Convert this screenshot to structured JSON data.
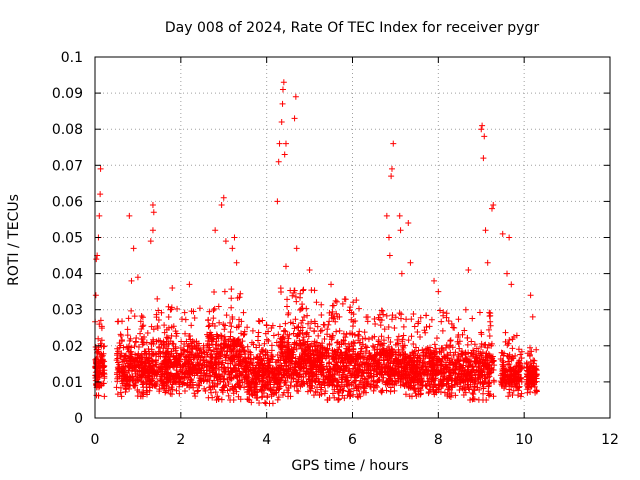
{
  "chart_data": {
    "type": "scatter",
    "title": "Day 008 of 2024, Rate Of TEC Index for receiver pygr",
    "xlabel": "GPS time / hours",
    "ylabel": "ROTI / TECUs",
    "xlim": [
      0,
      12
    ],
    "ylim": [
      0,
      0.1
    ],
    "xticks": [
      "0",
      "2",
      "4",
      "6",
      "8",
      "10",
      "12"
    ],
    "yticks": [
      "0",
      "0.01",
      "0.02",
      "0.03",
      "0.04",
      "0.05",
      "0.06",
      "0.07",
      "0.08",
      "0.09",
      "0.1"
    ],
    "grid": true,
    "marker": "+",
    "color": "#ff0000",
    "series": [
      {
        "name": "ROTI",
        "points": [
          [
            0.02,
            0.034
          ],
          [
            0.03,
            0.044
          ],
          [
            0.05,
            0.045
          ],
          [
            0.08,
            0.05
          ],
          [
            0.1,
            0.056
          ],
          [
            0.12,
            0.062
          ],
          [
            0.13,
            0.069
          ],
          [
            0.1,
            0.026
          ],
          [
            0.08,
            0.019
          ],
          [
            0.05,
            0.013
          ],
          [
            0.12,
            0.009
          ],
          [
            0.15,
            0.02
          ],
          [
            0.8,
            0.056
          ],
          [
            0.85,
            0.038
          ],
          [
            0.9,
            0.047
          ],
          [
            1.0,
            0.039
          ],
          [
            1.35,
            0.059
          ],
          [
            1.37,
            0.057
          ],
          [
            1.3,
            0.049
          ],
          [
            1.35,
            0.052
          ],
          [
            1.45,
            0.033
          ],
          [
            1.8,
            0.036
          ],
          [
            2.2,
            0.037
          ],
          [
            2.8,
            0.052
          ],
          [
            2.95,
            0.059
          ],
          [
            3.0,
            0.061
          ],
          [
            3.05,
            0.049
          ],
          [
            3.2,
            0.047
          ],
          [
            3.25,
            0.05
          ],
          [
            3.3,
            0.043
          ],
          [
            3.9,
            0.027
          ],
          [
            4.25,
            0.06
          ],
          [
            4.28,
            0.071
          ],
          [
            4.3,
            0.076
          ],
          [
            4.35,
            0.082
          ],
          [
            4.37,
            0.087
          ],
          [
            4.38,
            0.091
          ],
          [
            4.4,
            0.093
          ],
          [
            4.42,
            0.073
          ],
          [
            4.45,
            0.076
          ],
          [
            4.45,
            0.042
          ],
          [
            4.65,
            0.083
          ],
          [
            4.68,
            0.089
          ],
          [
            4.7,
            0.047
          ],
          [
            5.0,
            0.041
          ],
          [
            5.5,
            0.037
          ],
          [
            6.8,
            0.056
          ],
          [
            6.85,
            0.05
          ],
          [
            6.87,
            0.045
          ],
          [
            6.9,
            0.067
          ],
          [
            6.92,
            0.069
          ],
          [
            6.95,
            0.076
          ],
          [
            7.1,
            0.056
          ],
          [
            7.12,
            0.052
          ],
          [
            7.15,
            0.04
          ],
          [
            7.3,
            0.054
          ],
          [
            7.35,
            0.043
          ],
          [
            7.9,
            0.038
          ],
          [
            8.0,
            0.035
          ],
          [
            8.7,
            0.041
          ],
          [
            9.0,
            0.08
          ],
          [
            9.02,
            0.081
          ],
          [
            9.05,
            0.072
          ],
          [
            9.07,
            0.078
          ],
          [
            9.1,
            0.052
          ],
          [
            9.15,
            0.043
          ],
          [
            9.25,
            0.058
          ],
          [
            9.28,
            0.059
          ],
          [
            9.5,
            0.051
          ],
          [
            9.6,
            0.04
          ],
          [
            9.65,
            0.05
          ],
          [
            9.7,
            0.037
          ],
          [
            10.15,
            0.034
          ],
          [
            10.2,
            0.028
          ]
        ]
      }
    ],
    "bands": [
      {
        "x0": 0.0,
        "x1": 0.22,
        "min": 0.006,
        "max": 0.028,
        "n": 110
      },
      {
        "x0": 0.5,
        "x1": 1.6,
        "min": 0.006,
        "max": 0.03,
        "n": 420
      },
      {
        "x0": 1.6,
        "x1": 2.6,
        "min": 0.006,
        "max": 0.031,
        "n": 380
      },
      {
        "x0": 2.6,
        "x1": 3.5,
        "min": 0.005,
        "max": 0.036,
        "n": 380
      },
      {
        "x0": 3.5,
        "x1": 4.3,
        "min": 0.004,
        "max": 0.027,
        "n": 330
      },
      {
        "x0": 4.3,
        "x1": 5.2,
        "min": 0.006,
        "max": 0.036,
        "n": 420
      },
      {
        "x0": 5.2,
        "x1": 6.2,
        "min": 0.005,
        "max": 0.034,
        "n": 430
      },
      {
        "x0": 6.2,
        "x1": 7.2,
        "min": 0.007,
        "max": 0.03,
        "n": 380
      },
      {
        "x0": 7.2,
        "x1": 8.0,
        "min": 0.006,
        "max": 0.029,
        "n": 320
      },
      {
        "x0": 8.0,
        "x1": 9.3,
        "min": 0.005,
        "max": 0.03,
        "n": 460
      },
      {
        "x0": 9.45,
        "x1": 9.95,
        "min": 0.006,
        "max": 0.024,
        "n": 170
      },
      {
        "x0": 10.05,
        "x1": 10.3,
        "min": 0.007,
        "max": 0.02,
        "n": 110
      }
    ]
  }
}
